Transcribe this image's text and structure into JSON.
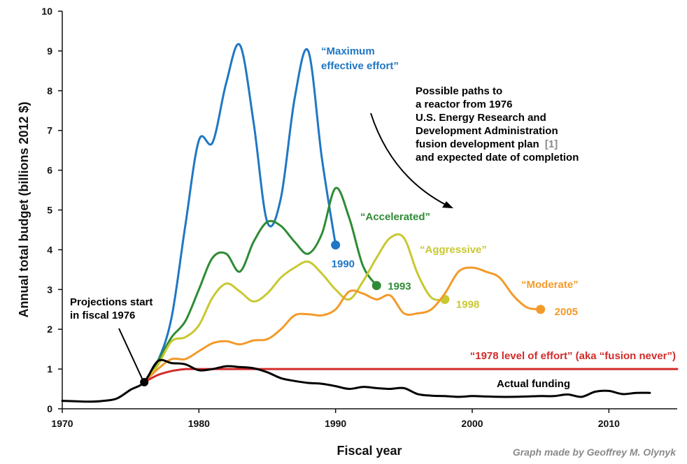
{
  "chart_data": {
    "type": "line",
    "xlabel": "Fiscal year",
    "ylabel": "Annual total budget (billions 2012 $)",
    "xlim": [
      1970,
      2015
    ],
    "ylim": [
      0,
      10
    ],
    "x_ticks": [
      "1970",
      "1980",
      "1990",
      "2000",
      "2010"
    ],
    "y_ticks": [
      "0",
      "1",
      "2",
      "3",
      "4",
      "5",
      "6",
      "7",
      "8",
      "9",
      "10"
    ],
    "grid": false,
    "series": [
      {
        "name": "“Maximum effective effort”",
        "end_label": "1990",
        "color": "#1f77c4",
        "points": [
          [
            1976,
            0.67
          ],
          [
            1977,
            1.2
          ],
          [
            1978,
            2.3
          ],
          [
            1979,
            4.6
          ],
          [
            1980,
            6.75
          ],
          [
            1981,
            6.7
          ],
          [
            1982,
            8.2
          ],
          [
            1983,
            9.15
          ],
          [
            1984,
            7.2
          ],
          [
            1985,
            4.7
          ],
          [
            1986,
            5.3
          ],
          [
            1987,
            7.8
          ],
          [
            1988,
            9.0
          ],
          [
            1989,
            6.3
          ],
          [
            1990,
            4.12
          ]
        ]
      },
      {
        "name": "“Accelerated”",
        "end_label": "1993",
        "color": "#2e8b35",
        "points": [
          [
            1976,
            0.67
          ],
          [
            1977,
            1.2
          ],
          [
            1978,
            1.8
          ],
          [
            1979,
            2.2
          ],
          [
            1980,
            3.0
          ],
          [
            1981,
            3.8
          ],
          [
            1982,
            3.9
          ],
          [
            1983,
            3.45
          ],
          [
            1984,
            4.2
          ],
          [
            1985,
            4.7
          ],
          [
            1986,
            4.6
          ],
          [
            1987,
            4.2
          ],
          [
            1988,
            3.9
          ],
          [
            1989,
            4.4
          ],
          [
            1990,
            5.55
          ],
          [
            1991,
            4.8
          ],
          [
            1992,
            3.6
          ],
          [
            1993,
            3.1
          ]
        ]
      },
      {
        "name": "“Aggressive”",
        "end_label": "1998",
        "color": "#c8c831",
        "points": [
          [
            1976,
            0.67
          ],
          [
            1977,
            1.1
          ],
          [
            1978,
            1.7
          ],
          [
            1979,
            1.8
          ],
          [
            1980,
            2.1
          ],
          [
            1981,
            2.8
          ],
          [
            1982,
            3.15
          ],
          [
            1983,
            2.95
          ],
          [
            1984,
            2.7
          ],
          [
            1985,
            2.9
          ],
          [
            1986,
            3.3
          ],
          [
            1987,
            3.55
          ],
          [
            1988,
            3.7
          ],
          [
            1989,
            3.4
          ],
          [
            1990,
            3.0
          ],
          [
            1991,
            2.75
          ],
          [
            1992,
            3.2
          ],
          [
            1993,
            3.8
          ],
          [
            1994,
            4.3
          ],
          [
            1995,
            4.3
          ],
          [
            1996,
            3.4
          ],
          [
            1997,
            2.8
          ],
          [
            1998,
            2.75
          ]
        ]
      },
      {
        "name": "“Moderate”",
        "end_label": "2005",
        "color": "#f39a2a",
        "points": [
          [
            1976,
            0.67
          ],
          [
            1977,
            1.0
          ],
          [
            1978,
            1.25
          ],
          [
            1979,
            1.25
          ],
          [
            1980,
            1.45
          ],
          [
            1981,
            1.65
          ],
          [
            1982,
            1.7
          ],
          [
            1983,
            1.62
          ],
          [
            1984,
            1.72
          ],
          [
            1985,
            1.75
          ],
          [
            1986,
            2.0
          ],
          [
            1987,
            2.35
          ],
          [
            1988,
            2.38
          ],
          [
            1989,
            2.35
          ],
          [
            1990,
            2.5
          ],
          [
            1991,
            2.95
          ],
          [
            1992,
            2.9
          ],
          [
            1993,
            2.75
          ],
          [
            1994,
            2.85
          ],
          [
            1995,
            2.4
          ],
          [
            1996,
            2.4
          ],
          [
            1997,
            2.5
          ],
          [
            1998,
            2.9
          ],
          [
            1999,
            3.45
          ],
          [
            2000,
            3.55
          ],
          [
            2001,
            3.45
          ],
          [
            2002,
            3.3
          ],
          [
            2003,
            2.85
          ],
          [
            2004,
            2.55
          ],
          [
            2005,
            2.5
          ]
        ]
      },
      {
        "name": "“1978 level of effort” (aka “fusion never”)",
        "color": "#d22a2a",
        "points": [
          [
            1976,
            0.67
          ],
          [
            1977,
            0.85
          ],
          [
            1978,
            0.95
          ],
          [
            1979,
            1.0
          ],
          [
            2015,
            1.0
          ]
        ]
      },
      {
        "name": "Actual funding",
        "color": "#000000",
        "points": [
          [
            1970,
            0.2
          ],
          [
            1971,
            0.19
          ],
          [
            1972,
            0.18
          ],
          [
            1973,
            0.2
          ],
          [
            1974,
            0.26
          ],
          [
            1975,
            0.48
          ],
          [
            1976,
            0.67
          ],
          [
            1977,
            1.2
          ],
          [
            1978,
            1.15
          ],
          [
            1979,
            1.12
          ],
          [
            1980,
            0.97
          ],
          [
            1981,
            1.0
          ],
          [
            1982,
            1.07
          ],
          [
            1983,
            1.05
          ],
          [
            1984,
            1.02
          ],
          [
            1985,
            0.92
          ],
          [
            1986,
            0.77
          ],
          [
            1987,
            0.7
          ],
          [
            1988,
            0.65
          ],
          [
            1989,
            0.63
          ],
          [
            1990,
            0.57
          ],
          [
            1991,
            0.5
          ],
          [
            1992,
            0.55
          ],
          [
            1993,
            0.52
          ],
          [
            1994,
            0.5
          ],
          [
            1995,
            0.52
          ],
          [
            1996,
            0.37
          ],
          [
            1997,
            0.33
          ],
          [
            1998,
            0.32
          ],
          [
            1999,
            0.3
          ],
          [
            2000,
            0.32
          ],
          [
            2001,
            0.31
          ],
          [
            2002,
            0.3
          ],
          [
            2003,
            0.3
          ],
          [
            2004,
            0.31
          ],
          [
            2005,
            0.32
          ],
          [
            2006,
            0.32
          ],
          [
            2007,
            0.36
          ],
          [
            2008,
            0.3
          ],
          [
            2009,
            0.43
          ],
          [
            2010,
            0.45
          ],
          [
            2011,
            0.37
          ],
          [
            2012,
            0.4
          ],
          [
            2013,
            0.4
          ]
        ]
      }
    ],
    "annotations": {
      "projections": [
        "Projections start",
        "in fiscal 1976"
      ],
      "paths_note": [
        "Possible paths to",
        "a reactor from 1976",
        "U.S. Energy Research and",
        "Development Administration",
        "fusion development plan",
        "and expected date of completion"
      ],
      "reference_marker": "[1]",
      "credit": "Graph made by Geoffrey M. Olynyk"
    }
  },
  "colors": {
    "axis": "#111111",
    "reference": "#8a8a8a"
  }
}
